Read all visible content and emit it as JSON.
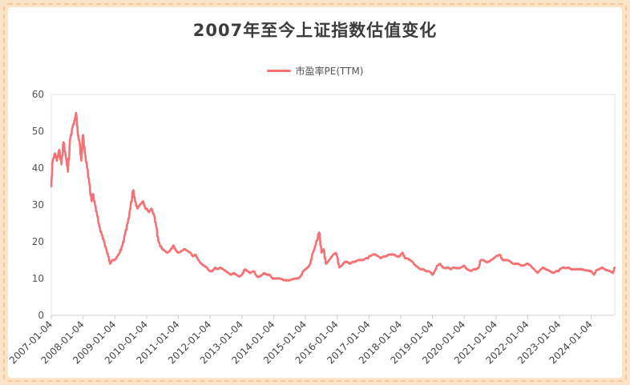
{
  "chart_data": {
    "type": "line",
    "title": "2007年至今上证指数估值变化",
    "xlabel": "",
    "ylabel": "",
    "ylim": [
      0,
      60
    ],
    "yticks": [
      0,
      10,
      20,
      30,
      40,
      50,
      60
    ],
    "grid": false,
    "legend_position": "top-center",
    "x_range": [
      "2007-01-04",
      "2024-09-30"
    ],
    "xticks": [
      "2007-01-04",
      "2008-01-04",
      "2009-01-04",
      "2010-01-04",
      "2011-01-04",
      "2012-01-04",
      "2013-01-04",
      "2014-01-04",
      "2015-01-04",
      "2016-01-04",
      "2017-01-04",
      "2018-01-04",
      "2019-01-04",
      "2020-01-04",
      "2021-01-04",
      "2022-01-04",
      "2023-01-04",
      "2024-01-04"
    ],
    "series": [
      {
        "name": "市盈率PE(TTM)",
        "color": "#f47174",
        "points": [
          [
            "2007-01-04",
            35
          ],
          [
            "2007-01-20",
            42
          ],
          [
            "2007-02-15",
            44
          ],
          [
            "2007-03-10",
            42
          ],
          [
            "2007-04-05",
            45
          ],
          [
            "2007-05-01",
            41
          ],
          [
            "2007-05-25",
            47
          ],
          [
            "2007-06-20",
            43
          ],
          [
            "2007-07-15",
            39
          ],
          [
            "2007-08-10",
            48
          ],
          [
            "2007-09-05",
            51
          ],
          [
            "2007-10-01",
            53
          ],
          [
            "2007-10-16",
            55
          ],
          [
            "2007-11-05",
            49
          ],
          [
            "2007-11-25",
            47
          ],
          [
            "2007-12-15",
            42
          ],
          [
            "2008-01-04",
            49
          ],
          [
            "2008-01-25",
            44
          ],
          [
            "2008-02-20",
            40
          ],
          [
            "2008-03-15",
            36
          ],
          [
            "2008-04-10",
            31
          ],
          [
            "2008-04-28",
            33
          ],
          [
            "2008-05-20",
            30
          ],
          [
            "2008-06-15",
            27
          ],
          [
            "2008-07-10",
            24
          ],
          [
            "2008-08-05",
            22
          ],
          [
            "2008-09-01",
            20
          ],
          [
            "2008-09-25",
            18
          ],
          [
            "2008-10-20",
            16
          ],
          [
            "2008-11-10",
            14
          ],
          [
            "2008-12-05",
            15
          ],
          [
            "2009-01-04",
            15
          ],
          [
            "2009-02-01",
            16
          ],
          [
            "2009-03-01",
            17
          ],
          [
            "2009-04-01",
            19
          ],
          [
            "2009-05-01",
            22
          ],
          [
            "2009-06-01",
            25
          ],
          [
            "2009-07-01",
            29
          ],
          [
            "2009-08-04",
            34
          ],
          [
            "2009-08-25",
            31
          ],
          [
            "2009-09-20",
            29
          ],
          [
            "2009-10-20",
            30
          ],
          [
            "2009-11-24",
            31
          ],
          [
            "2009-12-20",
            29
          ],
          [
            "2010-01-04",
            29
          ],
          [
            "2010-02-01",
            28
          ],
          [
            "2010-03-01",
            29
          ],
          [
            "2010-04-01",
            27
          ],
          [
            "2010-04-25",
            24
          ],
          [
            "2010-05-20",
            20
          ],
          [
            "2010-06-30",
            18
          ],
          [
            "2010-08-01",
            17.5
          ],
          [
            "2010-09-01",
            17
          ],
          [
            "2010-10-01",
            17.5
          ],
          [
            "2010-11-08",
            19
          ],
          [
            "2010-12-10",
            17.5
          ],
          [
            "2011-01-04",
            17
          ],
          [
            "2011-02-15",
            17.5
          ],
          [
            "2011-03-15",
            18
          ],
          [
            "2011-04-18",
            17.5
          ],
          [
            "2011-05-20",
            17
          ],
          [
            "2011-06-20",
            16
          ],
          [
            "2011-07-20",
            16.5
          ],
          [
            "2011-08-20",
            15
          ],
          [
            "2011-09-25",
            14
          ],
          [
            "2011-10-25",
            13.5
          ],
          [
            "2011-11-25",
            13
          ],
          [
            "2011-12-28",
            12
          ],
          [
            "2012-02-01",
            12
          ],
          [
            "2012-03-01",
            13
          ],
          [
            "2012-04-01",
            12.5
          ],
          [
            "2012-05-01",
            13
          ],
          [
            "2012-06-01",
            12.5
          ],
          [
            "2012-07-01",
            12
          ],
          [
            "2012-08-01",
            11.5
          ],
          [
            "2012-09-01",
            11
          ],
          [
            "2012-10-01",
            11.5
          ],
          [
            "2012-11-01",
            11
          ],
          [
            "2012-12-03",
            10.5
          ],
          [
            "2013-01-04",
            11
          ],
          [
            "2013-02-06",
            12.5
          ],
          [
            "2013-03-10",
            12
          ],
          [
            "2013-04-10",
            11.5
          ],
          [
            "2013-05-20",
            12
          ],
          [
            "2013-06-25",
            10.5
          ],
          [
            "2013-07-25",
            10.5
          ],
          [
            "2013-08-25",
            11
          ],
          [
            "2013-09-15",
            11.5
          ],
          [
            "2013-10-20",
            11
          ],
          [
            "2013-11-20",
            11
          ],
          [
            "2013-12-20",
            10
          ],
          [
            "2014-01-04",
            10
          ],
          [
            "2014-02-10",
            10
          ],
          [
            "2014-03-10",
            10
          ],
          [
            "2014-04-10",
            9.8
          ],
          [
            "2014-05-10",
            9.5
          ],
          [
            "2014-06-10",
            9.5
          ],
          [
            "2014-07-10",
            9.5
          ],
          [
            "2014-08-10",
            9.8
          ],
          [
            "2014-09-10",
            10
          ],
          [
            "2014-10-10",
            10
          ],
          [
            "2014-11-10",
            10.5
          ],
          [
            "2014-12-10",
            12
          ],
          [
            "2015-01-04",
            12.5
          ],
          [
            "2015-02-01",
            13
          ],
          [
            "2015-03-01",
            14
          ],
          [
            "2015-04-01",
            17
          ],
          [
            "2015-05-01",
            19
          ],
          [
            "2015-06-12",
            22.5
          ],
          [
            "2015-07-08",
            17
          ],
          [
            "2015-08-01",
            18
          ],
          [
            "2015-08-26",
            14
          ],
          [
            "2015-09-20",
            14.5
          ],
          [
            "2015-10-20",
            15.5
          ],
          [
            "2015-11-20",
            16.5
          ],
          [
            "2015-12-20",
            17
          ],
          [
            "2016-01-04",
            16
          ],
          [
            "2016-01-28",
            13
          ],
          [
            "2016-02-28",
            13.5
          ],
          [
            "2016-03-28",
            14.5
          ],
          [
            "2016-04-28",
            14.5
          ],
          [
            "2016-05-28",
            14
          ],
          [
            "2016-06-28",
            14.5
          ],
          [
            "2016-07-28",
            14.5
          ],
          [
            "2016-08-28",
            15
          ],
          [
            "2016-09-28",
            15
          ],
          [
            "2016-10-28",
            15
          ],
          [
            "2016-11-28",
            15.5
          ],
          [
            "2016-12-28",
            15.5
          ],
          [
            "2017-01-04",
            16
          ],
          [
            "2017-02-20",
            16.5
          ],
          [
            "2017-03-20",
            16.5
          ],
          [
            "2017-04-20",
            16
          ],
          [
            "2017-05-20",
            15.5
          ],
          [
            "2017-06-20",
            16
          ],
          [
            "2017-07-20",
            16
          ],
          [
            "2017-08-20",
            16.5
          ],
          [
            "2017-09-20",
            16.5
          ],
          [
            "2017-10-20",
            16.5
          ],
          [
            "2017-11-20",
            16
          ],
          [
            "2017-12-20",
            16
          ],
          [
            "2018-01-04",
            16.5
          ],
          [
            "2018-01-26",
            17
          ],
          [
            "2018-02-20",
            15.5
          ],
          [
            "2018-03-20",
            15.5
          ],
          [
            "2018-04-20",
            15
          ],
          [
            "2018-05-20",
            14.5
          ],
          [
            "2018-06-20",
            13.5
          ],
          [
            "2018-07-20",
            13
          ],
          [
            "2018-08-20",
            12.5
          ],
          [
            "2018-09-20",
            12.5
          ],
          [
            "2018-10-20",
            12
          ],
          [
            "2018-11-20",
            12
          ],
          [
            "2018-12-20",
            11.5
          ],
          [
            "2019-01-04",
            11
          ],
          [
            "2019-02-01",
            12
          ],
          [
            "2019-03-01",
            13.5
          ],
          [
            "2019-04-01",
            14
          ],
          [
            "2019-05-01",
            13
          ],
          [
            "2019-06-01",
            12.8
          ],
          [
            "2019-07-01",
            13
          ],
          [
            "2019-08-01",
            12.5
          ],
          [
            "2019-09-01",
            13
          ],
          [
            "2019-10-01",
            12.8
          ],
          [
            "2019-11-01",
            12.8
          ],
          [
            "2019-12-01",
            13
          ],
          [
            "2020-01-04",
            13.5
          ],
          [
            "2020-02-04",
            12.5
          ],
          [
            "2020-03-20",
            12
          ],
          [
            "2020-04-20",
            12.5
          ],
          [
            "2020-05-20",
            12.5
          ],
          [
            "2020-06-20",
            13
          ],
          [
            "2020-07-10",
            15
          ],
          [
            "2020-08-10",
            15
          ],
          [
            "2020-09-10",
            14.5
          ],
          [
            "2020-10-10",
            14.5
          ],
          [
            "2020-11-10",
            15
          ],
          [
            "2020-12-10",
            15.5
          ],
          [
            "2021-01-04",
            16
          ],
          [
            "2021-02-18",
            16.5
          ],
          [
            "2021-03-20",
            15
          ],
          [
            "2021-04-20",
            15
          ],
          [
            "2021-05-20",
            15
          ],
          [
            "2021-06-20",
            14.5
          ],
          [
            "2021-07-20",
            14
          ],
          [
            "2021-08-20",
            14
          ],
          [
            "2021-09-20",
            14
          ],
          [
            "2021-10-20",
            13.5
          ],
          [
            "2021-11-20",
            13.5
          ],
          [
            "2021-12-20",
            14
          ],
          [
            "2022-01-04",
            14
          ],
          [
            "2022-02-04",
            13.5
          ],
          [
            "2022-03-15",
            12.5
          ],
          [
            "2022-04-26",
            11.5
          ],
          [
            "2022-05-26",
            12.3
          ],
          [
            "2022-06-26",
            13
          ],
          [
            "2022-07-26",
            12.5
          ],
          [
            "2022-08-26",
            12.3
          ],
          [
            "2022-09-26",
            11.8
          ],
          [
            "2022-10-26",
            11.5
          ],
          [
            "2022-11-26",
            12
          ],
          [
            "2022-12-26",
            12
          ],
          [
            "2023-01-04",
            12.5
          ],
          [
            "2023-02-15",
            13
          ],
          [
            "2023-03-15",
            12.8
          ],
          [
            "2023-04-15",
            13
          ],
          [
            "2023-05-15",
            12.5
          ],
          [
            "2023-06-15",
            12.5
          ],
          [
            "2023-07-15",
            12.5
          ],
          [
            "2023-08-15",
            12.5
          ],
          [
            "2023-09-15",
            12.5
          ],
          [
            "2023-10-15",
            12.3
          ],
          [
            "2023-11-15",
            12.2
          ],
          [
            "2023-12-15",
            12
          ],
          [
            "2024-01-04",
            12
          ],
          [
            "2024-02-05",
            11
          ],
          [
            "2024-03-05",
            12.3
          ],
          [
            "2024-04-05",
            12.5
          ],
          [
            "2024-05-05",
            13
          ],
          [
            "2024-06-05",
            12.5
          ],
          [
            "2024-07-05",
            12.2
          ],
          [
            "2024-08-05",
            12
          ],
          [
            "2024-09-10",
            11.5
          ],
          [
            "2024-09-30",
            13
          ]
        ]
      }
    ]
  }
}
